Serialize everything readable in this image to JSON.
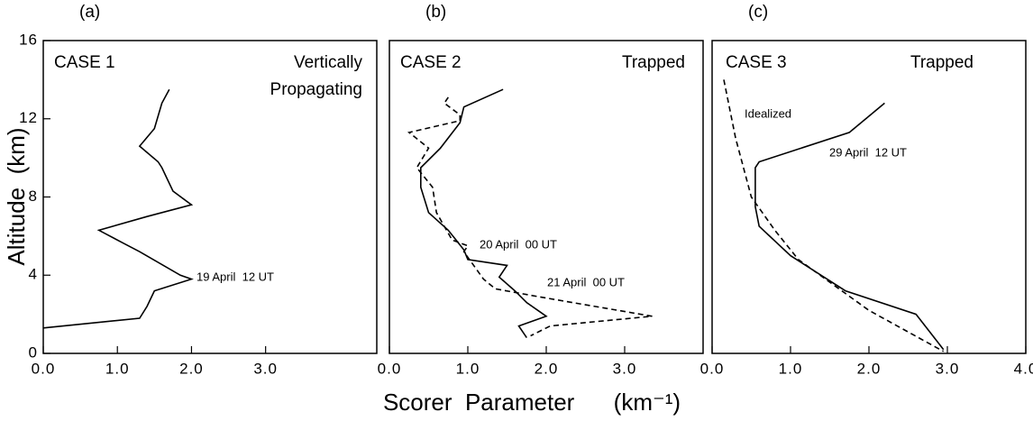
{
  "chart_data": [
    {
      "type": "line",
      "title": "(a)",
      "ylabel": "Altitude  (km)",
      "annotations": [
        "CASE 1",
        "Vertically",
        "Propagating"
      ],
      "xlim": [
        0,
        4.5
      ],
      "xticks": [
        {
          "value": 0,
          "label": "0.0"
        },
        {
          "value": 1,
          "label": "1.0"
        },
        {
          "value": 2,
          "label": "2.0"
        },
        {
          "value": 3,
          "label": "3.0"
        }
      ],
      "ylim": [
        0,
        16
      ],
      "yticks": [
        0,
        4,
        8,
        12,
        16
      ],
      "series": [
        {
          "name": "19 April  12 UT",
          "color": "#000000",
          "dashed": false,
          "x": [
            0,
            1.3,
            1.4,
            1.5,
            2.0,
            1.85,
            1.3,
            1.1,
            0.75,
            1.4,
            2.0,
            1.75,
            1.6,
            1.55,
            1.3,
            1.5,
            1.6,
            1.7
          ],
          "values": [
            1.3,
            1.8,
            2.4,
            3.2,
            3.8,
            4.0,
            5.2,
            5.6,
            6.3,
            7.0,
            7.6,
            8.3,
            9.5,
            9.8,
            10.6,
            11.5,
            12.8,
            13.5
          ]
        }
      ]
    },
    {
      "type": "line",
      "title": "(b)",
      "xlabel": "Scorer  Parameter      (km⁻¹)",
      "annotations": [
        "CASE 2",
        "Trapped"
      ],
      "xlim": [
        0,
        4
      ],
      "xticks": [
        {
          "value": 0,
          "label": "0.0"
        },
        {
          "value": 1,
          "label": "1.0"
        },
        {
          "value": 2,
          "label": "2.0"
        },
        {
          "value": 3,
          "label": "3.0"
        }
      ],
      "ylim": [
        0,
        16
      ],
      "series": [
        {
          "name": "20 April  00 UT",
          "color": "#000000",
          "dashed": false,
          "x": [
            1.45,
            0.95,
            0.9,
            0.65,
            0.4,
            0.4,
            0.5,
            0.75,
            0.95,
            1.0,
            1.5,
            1.4,
            1.6,
            1.75,
            2.0,
            1.65,
            1.7,
            1.75
          ],
          "values": [
            13.5,
            12.6,
            11.8,
            10.5,
            9.5,
            8.5,
            7.2,
            6.3,
            5.3,
            4.8,
            4.5,
            3.9,
            3.2,
            2.6,
            1.9,
            1.4,
            1.1,
            0.8
          ]
        },
        {
          "name": "21 April  00 UT",
          "color": "#000000",
          "dashed": true,
          "x": [
            0.75,
            0.7,
            0.9,
            0.9,
            0.25,
            0.5,
            0.35,
            0.55,
            0.6,
            0.8,
            1.0,
            0.95,
            1.2,
            1.35,
            1.9,
            3.35,
            2.05,
            1.8
          ],
          "values": [
            13.1,
            12.8,
            12.2,
            11.9,
            11.3,
            10.5,
            9.5,
            8.5,
            7.2,
            5.8,
            5.5,
            5.2,
            3.8,
            3.3,
            2.9,
            1.9,
            1.4,
            0.9
          ]
        }
      ]
    },
    {
      "type": "line",
      "title": "(c)",
      "annotations": [
        "CASE 3",
        "Trapped"
      ],
      "xlim": [
        0,
        4
      ],
      "xticks": [
        {
          "value": 0,
          "label": "0.0"
        },
        {
          "value": 1,
          "label": "1.0"
        },
        {
          "value": 2,
          "label": "2.0"
        },
        {
          "value": 3,
          "label": "3.0"
        },
        {
          "value": 4,
          "label": "4.0"
        }
      ],
      "ylim": [
        0,
        16
      ],
      "series": [
        {
          "name": "29 April  12 UT",
          "color": "#000000",
          "dashed": false,
          "x": [
            2.2,
            1.75,
            0.6,
            0.55,
            0.55,
            0.6,
            1.0,
            1.7,
            2.6,
            2.95
          ],
          "values": [
            12.8,
            11.3,
            9.8,
            9.5,
            7.5,
            6.5,
            5.0,
            3.2,
            2.0,
            0.2
          ]
        },
        {
          "name": "Idealized",
          "color": "#000000",
          "dashed": true,
          "x": [
            0.15,
            0.3,
            0.5,
            0.8,
            1.1,
            2.0,
            2.95
          ],
          "values": [
            14,
            11,
            8,
            6.3,
            4.8,
            2.2,
            0.1
          ]
        }
      ]
    }
  ]
}
